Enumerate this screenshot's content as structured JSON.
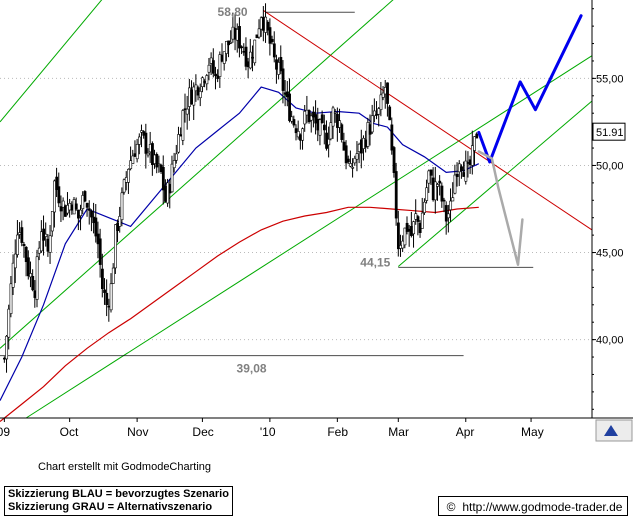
{
  "chart_data": {
    "type": "candlestick",
    "title": "",
    "xlabel": "",
    "ylabel": "",
    "ylim": [
      35.5,
      59.5
    ],
    "y_ticks": [
      "55,00",
      "50,00",
      "45,00",
      "40,00"
    ],
    "x_ticks": [
      {
        "label": "'09",
        "day": -8
      },
      {
        "label": "Oct",
        "day": 22
      },
      {
        "label": "Nov",
        "day": 53
      },
      {
        "label": "Dec",
        "day": 83
      },
      {
        "label": "'10",
        "day": 114
      },
      {
        "label": "Feb",
        "day": 145
      },
      {
        "label": "Mar",
        "day": 173
      },
      {
        "label": "Apr",
        "day": 204
      },
      {
        "label": "May",
        "day": 234
      }
    ],
    "xlim_days": [
      -10,
      262
    ],
    "last_price_label": "51.91",
    "last_price": 51.91,
    "annotations": [
      {
        "label": "58,80",
        "day": 112,
        "price": 58.8
      },
      {
        "label": "44,15",
        "day": 173,
        "price": 44.15
      },
      {
        "label": "39,08",
        "day": 95,
        "price": 39.08
      }
    ],
    "price_path": [
      [
        -8,
        38.9
      ],
      [
        -5,
        43
      ],
      [
        -2,
        46.5
      ],
      [
        0,
        46
      ],
      [
        3,
        44
      ],
      [
        6,
        43
      ],
      [
        9,
        46.5
      ],
      [
        12,
        45
      ],
      [
        15,
        49
      ],
      [
        18,
        48
      ],
      [
        20,
        47.5
      ],
      [
        23,
        48
      ],
      [
        26,
        47
      ],
      [
        29,
        48.5
      ],
      [
        32,
        47
      ],
      [
        35,
        45.5
      ],
      [
        37,
        43
      ],
      [
        39,
        42
      ],
      [
        41,
        43
      ],
      [
        43,
        46
      ],
      [
        46,
        48
      ],
      [
        49,
        50
      ],
      [
        52,
        51
      ],
      [
        55,
        51.5
      ],
      [
        58,
        51
      ],
      [
        61,
        50
      ],
      [
        64,
        49.5
      ],
      [
        66,
        48
      ],
      [
        68,
        49
      ],
      [
        71,
        51
      ],
      [
        74,
        53
      ],
      [
        77,
        54
      ],
      [
        80,
        54.5
      ],
      [
        83,
        55
      ],
      [
        86,
        56
      ],
      [
        89,
        55
      ],
      [
        92,
        56.5
      ],
      [
        95,
        57
      ],
      [
        98,
        57.5
      ],
      [
        101,
        57
      ],
      [
        104,
        56
      ],
      [
        107,
        57
      ],
      [
        110,
        58.8
      ],
      [
        113,
        57.5
      ],
      [
        116,
        56
      ],
      [
        119,
        55
      ],
      [
        122,
        53.5
      ],
      [
        125,
        52.5
      ],
      [
        128,
        52
      ],
      [
        131,
        53
      ],
      [
        134,
        52.5
      ],
      [
        137,
        52
      ],
      [
        140,
        51.5
      ],
      [
        143,
        53
      ],
      [
        146,
        52.5
      ],
      [
        148,
        51
      ],
      [
        151,
        49.5
      ],
      [
        153,
        50.5
      ],
      [
        156,
        51
      ],
      [
        159,
        52
      ],
      [
        161,
        52.5
      ],
      [
        164,
        53
      ],
      [
        167,
        54.5
      ],
      [
        169,
        52
      ],
      [
        171,
        49
      ],
      [
        173,
        45.5
      ],
      [
        175,
        46
      ],
      [
        177,
        46.5
      ],
      [
        179,
        46
      ],
      [
        181,
        47
      ],
      [
        183,
        46.5
      ],
      [
        185,
        48
      ],
      [
        187,
        49.5
      ],
      [
        189,
        48.5
      ],
      [
        191,
        49
      ],
      [
        193,
        48
      ],
      [
        195,
        47
      ],
      [
        197,
        47.5
      ],
      [
        199,
        49.5
      ],
      [
        201,
        50.5
      ],
      [
        203,
        50
      ],
      [
        205,
        49.5
      ],
      [
        207,
        50.5
      ],
      [
        209,
        51.9
      ]
    ],
    "series": [
      {
        "name": "",
        "color": "#0000aa",
        "points": [
          [
            -10,
            36.5
          ],
          [
            0,
            39
          ],
          [
            10,
            42
          ],
          [
            20,
            45.5
          ],
          [
            30,
            47.5
          ],
          [
            40,
            47
          ],
          [
            50,
            46.5
          ],
          [
            60,
            48
          ],
          [
            70,
            49.5
          ],
          [
            80,
            51
          ],
          [
            90,
            52
          ],
          [
            100,
            53
          ],
          [
            110,
            54.5
          ],
          [
            118,
            54.2
          ],
          [
            126,
            53.3
          ],
          [
            135,
            53
          ],
          [
            145,
            53.1
          ],
          [
            155,
            53
          ],
          [
            162,
            52.4
          ],
          [
            168,
            52.2
          ],
          [
            175,
            51.2
          ],
          [
            185,
            50.5
          ],
          [
            195,
            49.6
          ],
          [
            203,
            49.7
          ],
          [
            210,
            50.1
          ]
        ]
      },
      {
        "name": "",
        "color": "#cc0000",
        "points": [
          [
            -10,
            35.3
          ],
          [
            0,
            36.3
          ],
          [
            10,
            37.3
          ],
          [
            20,
            38.5
          ],
          [
            30,
            39.5
          ],
          [
            40,
            40.4
          ],
          [
            50,
            41.2
          ],
          [
            60,
            42.1
          ],
          [
            70,
            43
          ],
          [
            80,
            43.9
          ],
          [
            90,
            44.8
          ],
          [
            100,
            45.6
          ],
          [
            110,
            46.3
          ],
          [
            120,
            46.8
          ],
          [
            130,
            47.1
          ],
          [
            140,
            47.3
          ],
          [
            150,
            47.6
          ],
          [
            160,
            47.6
          ],
          [
            170,
            47.5
          ],
          [
            180,
            47.4
          ],
          [
            190,
            47.3
          ],
          [
            200,
            47.5
          ],
          [
            210,
            47.6
          ]
        ]
      }
    ],
    "trend_lines": [
      {
        "color": "#00aa00",
        "from": [
          -10,
          52.5
        ],
        "to": [
          40,
          60
        ]
      },
      {
        "color": "#00aa00",
        "from": [
          -10,
          39.5
        ],
        "to": [
          175,
          60
        ]
      },
      {
        "color": "#00aa00",
        "from": [
          2,
          35.5
        ],
        "to": [
          262,
          56.3
        ]
      },
      {
        "color": "#00aa00",
        "from": [
          173,
          44.2
        ],
        "to": [
          262,
          53.7
        ]
      },
      {
        "color": "#cc0000",
        "from": [
          111,
          58.9
        ],
        "to": [
          262,
          46.3
        ]
      }
    ],
    "horizontal_lines": [
      {
        "color": "#000000",
        "from_day": 112,
        "to_day": 153,
        "price": 58.8
      },
      {
        "color": "#000000",
        "from_day": 173,
        "to_day": 235,
        "price": 44.15
      },
      {
        "color": "#000000",
        "from_day": -10,
        "to_day": 203,
        "price": 39.08
      }
    ],
    "scenario_blue": {
      "color": "#0000ee",
      "points": [
        [
          210,
          51.9
        ],
        [
          215,
          50.2
        ],
        [
          229,
          54.8
        ],
        [
          236,
          53.2
        ],
        [
          257,
          58.6
        ]
      ]
    },
    "scenario_grey": {
      "color": "#aaaaaa",
      "points": [
        [
          210,
          50.8
        ],
        [
          216,
          50.4
        ],
        [
          219,
          48.7
        ],
        [
          228,
          44.3
        ],
        [
          230,
          46.9
        ]
      ]
    }
  },
  "footer": {
    "credit": "Chart erstellt mit GodmodeCharting",
    "legend_blue": "Skizzierung BLAU = bevorzugtes Szenario",
    "legend_grey": "Skizzierung GRAU = Alternativszenario",
    "copyright_symbol": "©",
    "url": "http://www.godmode-trader.de"
  }
}
